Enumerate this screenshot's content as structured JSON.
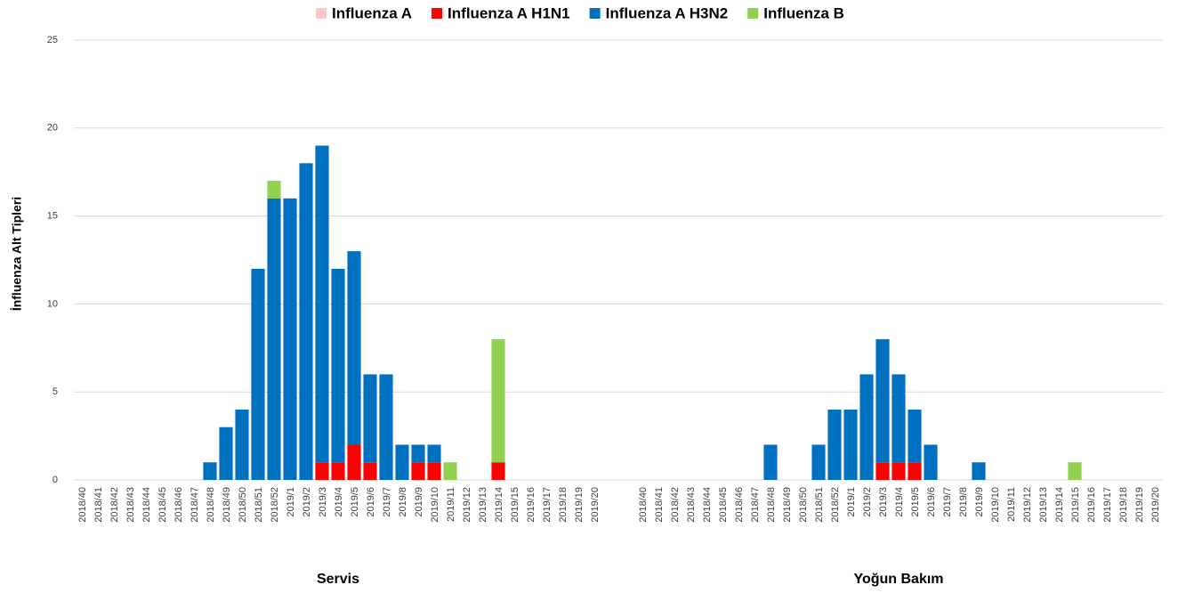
{
  "chart_data": {
    "type": "bar",
    "stacked": true,
    "y_label": "İnfluenza  Alt  Tipleri",
    "ylim": [
      0,
      25
    ],
    "yticks": [
      0,
      5,
      10,
      15,
      20,
      25
    ],
    "grid": true,
    "legend": "top",
    "groups": [
      {
        "label": "Servis",
        "categories": [
          "2018/40",
          "2018/41",
          "2018/42",
          "2018/43",
          "2018/44",
          "2018/45",
          "2018/46",
          "2018/47",
          "2018/48",
          "2018/49",
          "2018/50",
          "2018/51",
          "2018/52",
          "2019/1",
          "2019/2",
          "2019/3",
          "2019/4",
          "2019/5",
          "2019/6",
          "2019/7",
          "2019/8",
          "2019/9",
          "2019/10",
          "2019/11",
          "2019/12",
          "2019/13",
          "2019/14",
          "2019/15",
          "2019/16",
          "2019/17",
          "2019/18",
          "2019/19",
          "2019/20"
        ]
      },
      {
        "label": "Yoğun Bakım",
        "categories": [
          "2018/40",
          "2018/41",
          "2018/42",
          "2018/43",
          "2018/44",
          "2018/45",
          "2018/46",
          "2018/47",
          "2018/48",
          "2018/49",
          "2018/50",
          "2018/51",
          "2018/52",
          "2019/1",
          "2019/2",
          "2019/3",
          "2019/4",
          "2019/5",
          "2019/6",
          "2019/7",
          "2019/8",
          "2019/9",
          "2019/10",
          "2019/11",
          "2019/12",
          "2019/13",
          "2019/14",
          "2019/15",
          "2019/16",
          "2019/17",
          "2019/18",
          "2019/19",
          "2019/20"
        ]
      }
    ],
    "series": [
      {
        "name": "Influenza A",
        "color": "#f8c8c8",
        "values": [
          0,
          0,
          0,
          0,
          0,
          0,
          0,
          0,
          0,
          0,
          0,
          0,
          0,
          0,
          0,
          0,
          0,
          0,
          0,
          0,
          0,
          0,
          0,
          0,
          0,
          0,
          0,
          0,
          0,
          0,
          0,
          0,
          0,
          0,
          0,
          0,
          0,
          0,
          0,
          0,
          0,
          0,
          0,
          0,
          0,
          0,
          0,
          0,
          0,
          0,
          0,
          0,
          0,
          0,
          0,
          0,
          0,
          0,
          0,
          0,
          0,
          0,
          0,
          0,
          0,
          0
        ]
      },
      {
        "name": "Influenza A H1N1",
        "color": "#ff0000",
        "values": [
          0,
          0,
          0,
          0,
          0,
          0,
          0,
          0,
          0,
          0,
          0,
          0,
          0,
          0,
          0,
          1,
          1,
          2,
          1,
          0,
          0,
          1,
          1,
          0,
          0,
          0,
          1,
          0,
          0,
          0,
          0,
          0,
          0,
          0,
          0,
          0,
          0,
          0,
          0,
          0,
          0,
          0,
          0,
          0,
          0,
          0,
          0,
          0,
          1,
          1,
          1,
          0,
          0,
          0,
          0,
          0,
          0,
          0,
          0,
          0,
          0,
          0,
          0,
          0,
          0,
          0
        ]
      },
      {
        "name": "Influenza A H3N2",
        "color": "#0070c0",
        "values": [
          0,
          0,
          0,
          0,
          0,
          0,
          0,
          0,
          1,
          3,
          4,
          12,
          16,
          16,
          18,
          18,
          11,
          11,
          5,
          6,
          2,
          1,
          1,
          0,
          0,
          0,
          0,
          0,
          0,
          0,
          0,
          0,
          0,
          0,
          0,
          0,
          0,
          0,
          0,
          0,
          0,
          2,
          0,
          0,
          2,
          4,
          4,
          6,
          7,
          5,
          3,
          2,
          0,
          0,
          1,
          0,
          0,
          0,
          0,
          0,
          0,
          0,
          0,
          0,
          0,
          0
        ]
      },
      {
        "name": "Influenza B",
        "color": "#92d050",
        "values": [
          0,
          0,
          0,
          0,
          0,
          0,
          0,
          0,
          0,
          0,
          0,
          0,
          1,
          0,
          0,
          0,
          0,
          0,
          0,
          0,
          0,
          0,
          0,
          1,
          0,
          0,
          7,
          0,
          0,
          0,
          0,
          0,
          0,
          0,
          0,
          0,
          0,
          0,
          0,
          0,
          0,
          0,
          0,
          0,
          0,
          0,
          0,
          0,
          0,
          0,
          0,
          0,
          0,
          0,
          0,
          0,
          0,
          0,
          0,
          0,
          1,
          0,
          0,
          0,
          0,
          0,
          0
        ]
      }
    ]
  }
}
